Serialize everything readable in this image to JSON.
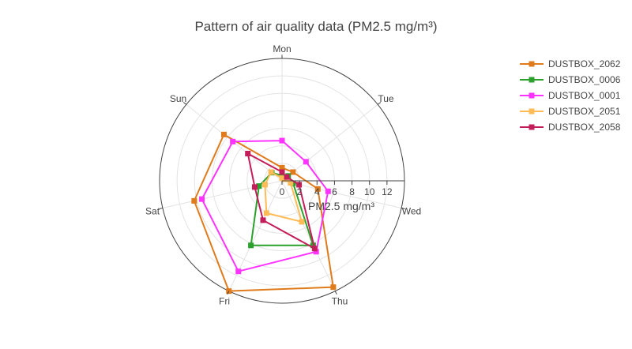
{
  "chart_data": {
    "type": "radar",
    "title": "Pattern of air quality data (PM2.5 mg/m³)",
    "radial_axis_title": "PM2.5 mg/m³",
    "categories": [
      "Mon",
      "Tue",
      "Wed",
      "Thu",
      "Fri",
      "Sat",
      "Sun"
    ],
    "radial_range": [
      0,
      14
    ],
    "radial_ticks": [
      "0",
      "2",
      "4",
      "6",
      "8",
      "10",
      "12"
    ],
    "radial_tick_values": [
      0,
      2,
      4,
      6,
      8,
      10,
      12
    ],
    "legend_position": "top-right",
    "series": [
      {
        "name": "DUSTBOX_2062",
        "color": "#e07b1c",
        "values": [
          1.5,
          1.6,
          4.2,
          13.5,
          14.0,
          10.3,
          8.5
        ]
      },
      {
        "name": "DUSTBOX_0006",
        "color": "#2ca02c",
        "values": [
          0.6,
          0.9,
          1.3,
          8.2,
          8.2,
          2.7,
          1.5
        ]
      },
      {
        "name": "DUSTBOX_0001",
        "color": "#ff33ff",
        "values": [
          4.6,
          3.5,
          5.4,
          9.0,
          11.5,
          9.4,
          7.2
        ]
      },
      {
        "name": "DUSTBOX_2051",
        "color": "#ffbb55",
        "values": [
          0.3,
          0.3,
          1.0,
          5.2,
          4.1,
          2.0,
          1.6
        ]
      },
      {
        "name": "DUSTBOX_2058",
        "color": "#c41e5a",
        "values": [
          1.0,
          0.7,
          2.0,
          8.6,
          5.0,
          3.2,
          5.0
        ]
      }
    ]
  }
}
